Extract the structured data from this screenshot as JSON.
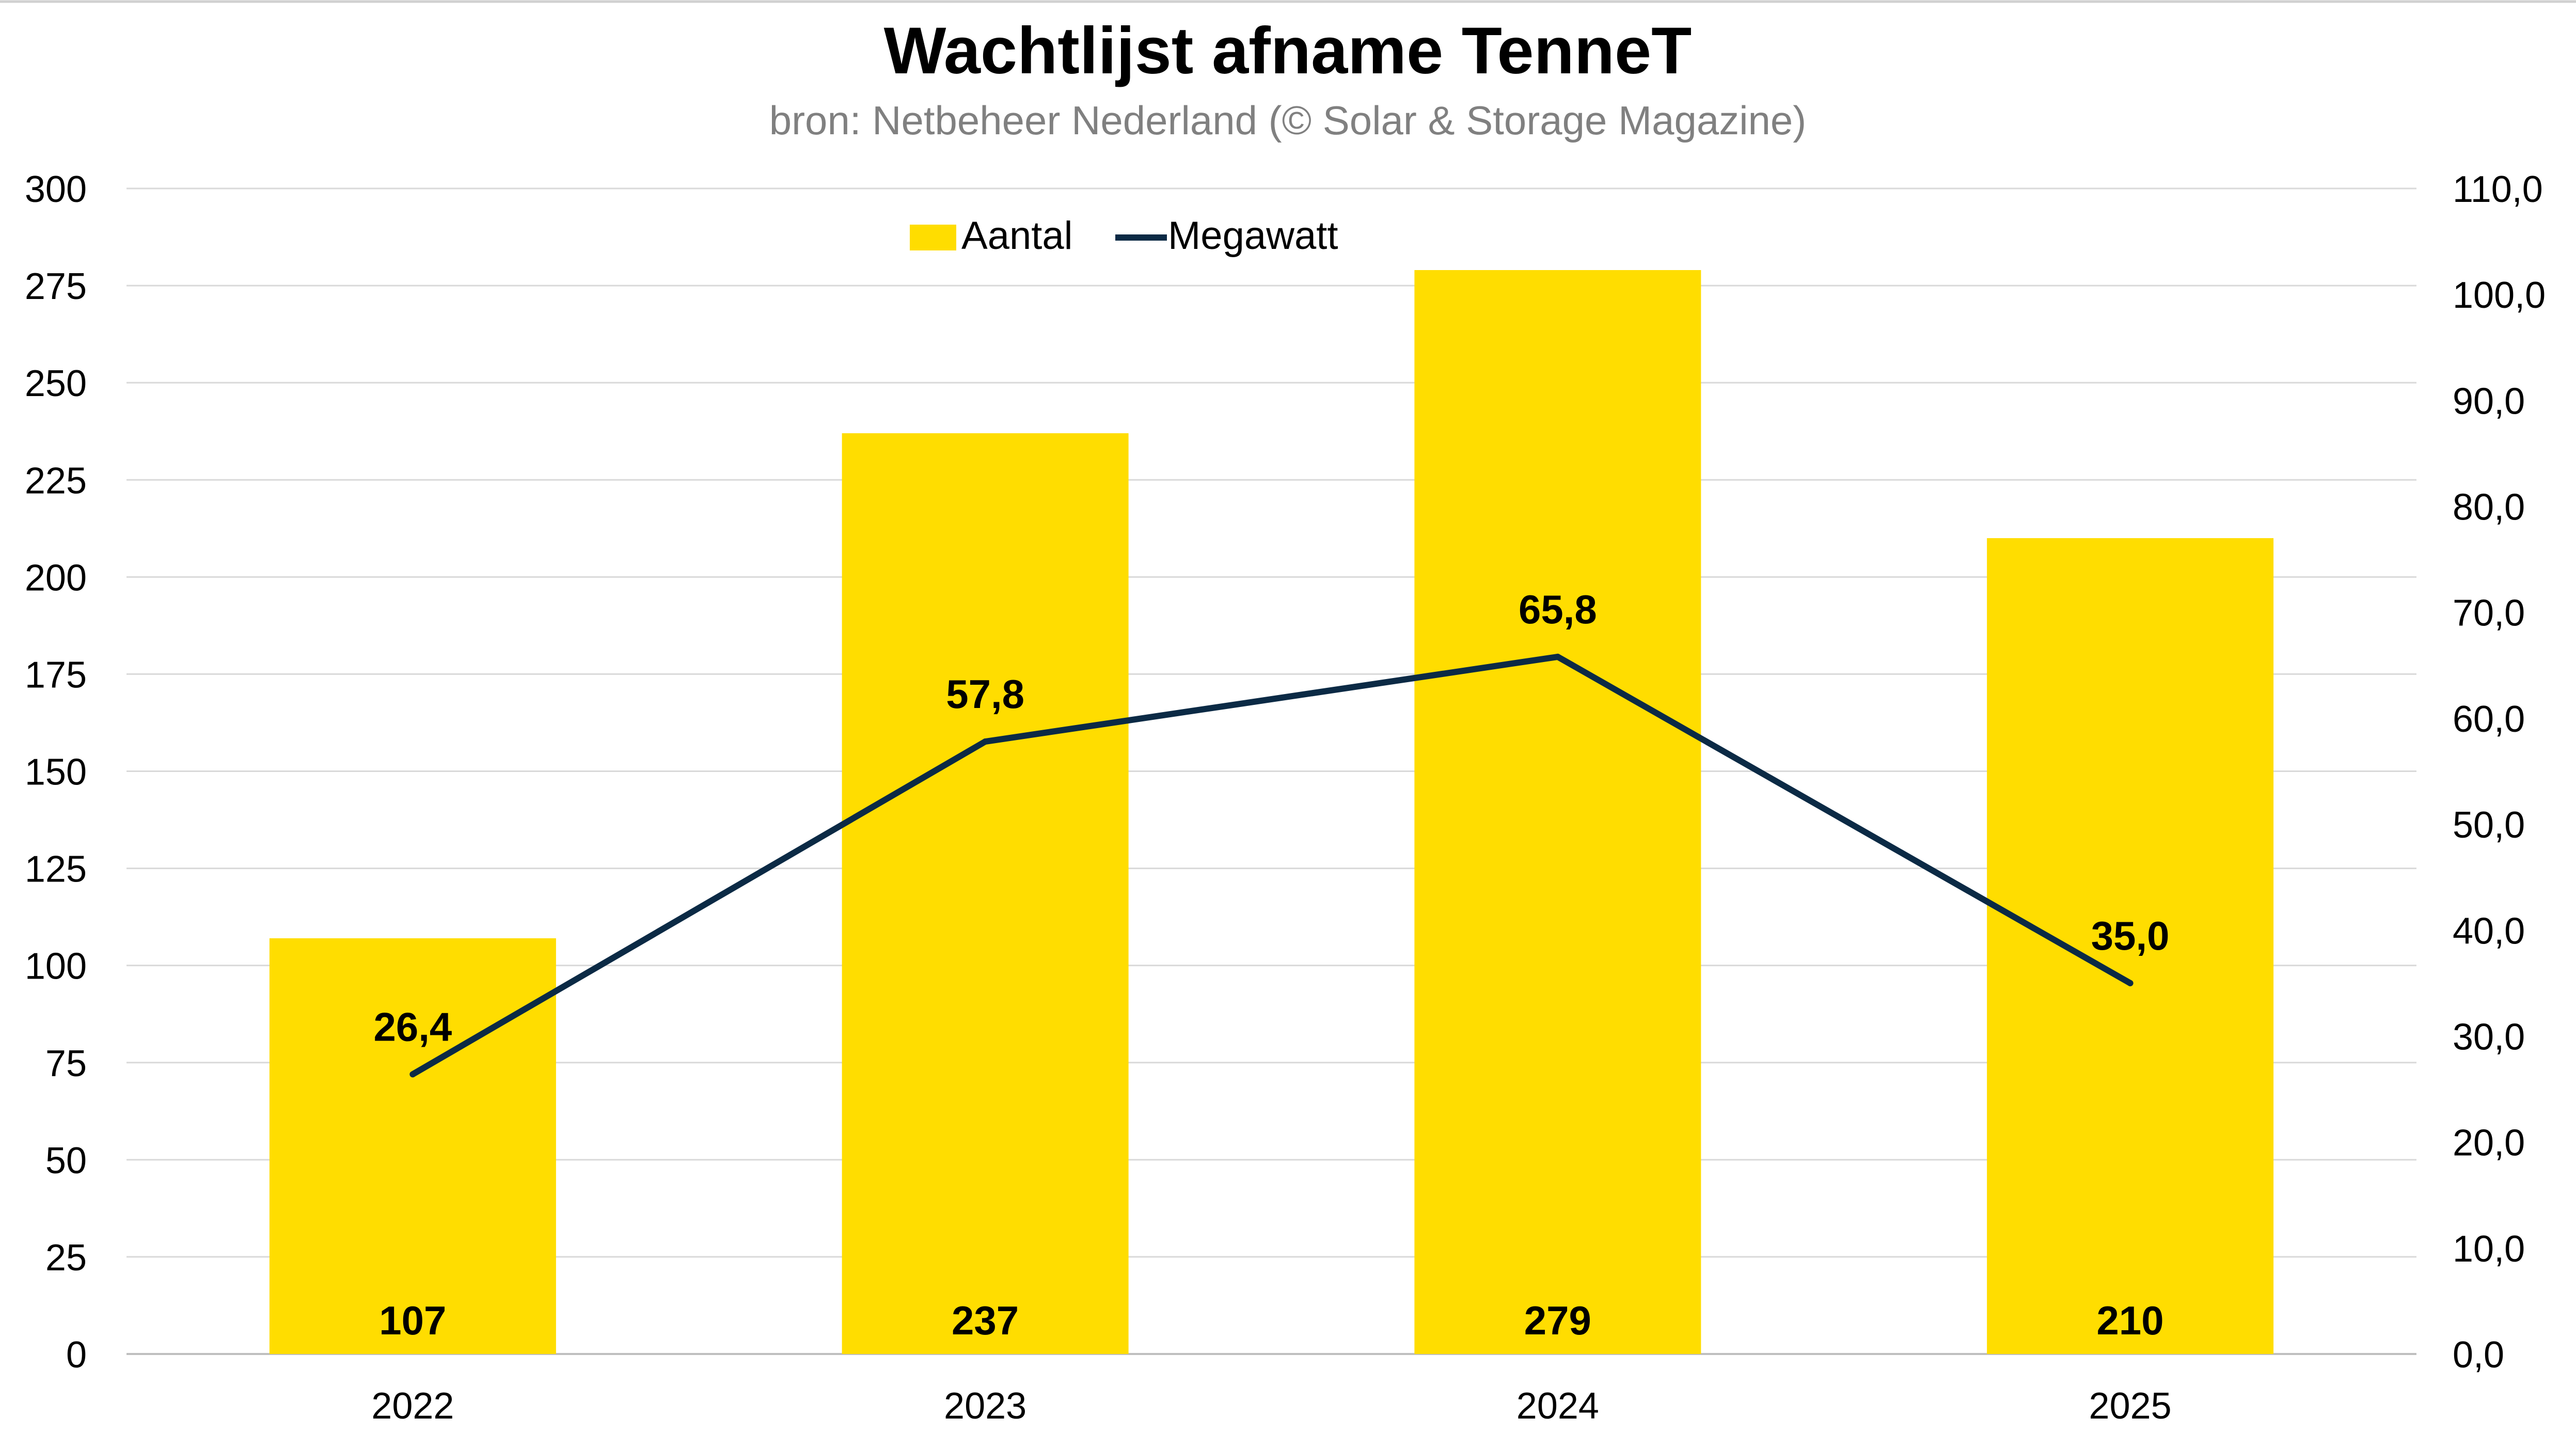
{
  "chart_data": {
    "type": "bar",
    "title": "Wachtlijst afname TenneT",
    "subtitle": "bron: Netbeheer Nederland (© Solar & Storage Magazine)",
    "categories": [
      "2022",
      "2023",
      "2024",
      "2025"
    ],
    "series": [
      {
        "name": "Aantal",
        "type": "bar",
        "axis": "left",
        "color": "#FFDD00",
        "values": [
          107,
          237,
          279,
          210
        ],
        "labels": [
          "107",
          "237",
          "279",
          "210"
        ]
      },
      {
        "name": "Megawatt",
        "type": "line",
        "axis": "right",
        "color": "#0B2A45",
        "values": [
          26.4,
          57.8,
          65.8,
          35.0
        ],
        "labels": [
          "26,4",
          "57,8",
          "65,8",
          "35,0"
        ]
      }
    ],
    "y_left": {
      "min": 0,
      "max": 300,
      "ticks": [
        "0",
        "25",
        "50",
        "75",
        "100",
        "125",
        "150",
        "175",
        "200",
        "225",
        "250",
        "275",
        "300"
      ]
    },
    "y_right": {
      "min": 0,
      "max": 110,
      "ticks": [
        "0,0",
        "10,0",
        "20,0",
        "30,0",
        "40,0",
        "50,0",
        "60,0",
        "70,0",
        "80,0",
        "90,0",
        "100,0",
        "110,0"
      ]
    },
    "grid": true,
    "legend_position": "top-center"
  }
}
